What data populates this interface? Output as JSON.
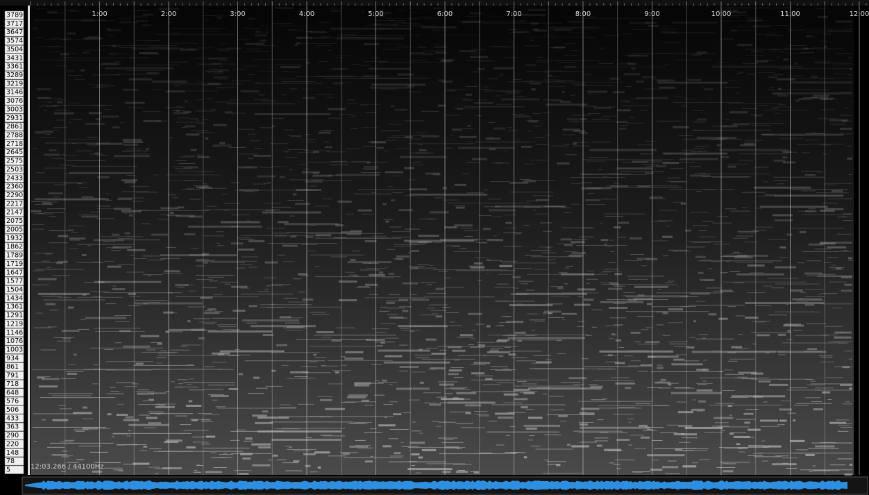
{
  "frequency_axis": {
    "labels": [
      "3789",
      "3717",
      "3647",
      "3574",
      "3504",
      "3431",
      "3361",
      "3289",
      "3219",
      "3146",
      "3076",
      "3003",
      "2931",
      "2861",
      "2788",
      "2718",
      "2645",
      "2575",
      "2503",
      "2433",
      "2360",
      "2290",
      "2217",
      "2147",
      "2075",
      "2005",
      "1932",
      "1862",
      "1789",
      "1719",
      "1647",
      "1577",
      "1504",
      "1434",
      "1361",
      "1291",
      "1219",
      "1146",
      "1076",
      "1003",
      "934",
      "861",
      "791",
      "718",
      "648",
      "576",
      "506",
      "433",
      "363",
      "290",
      "220",
      "148",
      "78",
      "5"
    ]
  },
  "time_axis": {
    "labels": [
      "1:00",
      "2:00",
      "3:00",
      "4:00",
      "5:00",
      "6:00",
      "7:00",
      "8:00",
      "9:00",
      "10:00",
      "11:00",
      "12:00"
    ]
  },
  "status": "12:03.266 / 44100Hz"
}
